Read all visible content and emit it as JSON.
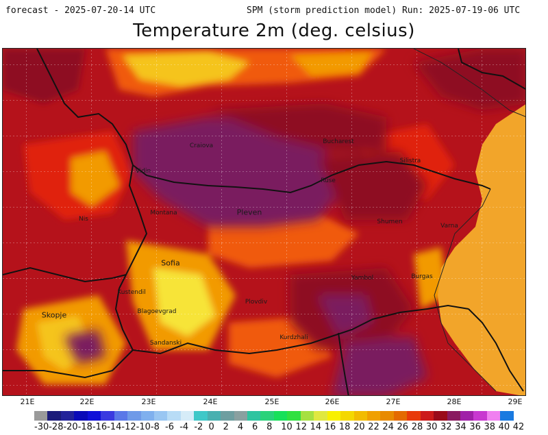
{
  "header": {
    "forecast": "forecast - 2025-07-20-14 UTC",
    "run": "SPM (storm prediction model) Run: 2025-07-19-06 UTC"
  },
  "title": "Temperature 2m (deg. celsius)",
  "longitudes": [
    "21E",
    "22E",
    "23E",
    "24E",
    "25E",
    "26E",
    "27E",
    "28E",
    "29E"
  ],
  "cities": [
    {
      "name": "Craiova"
    },
    {
      "name": "Bucharest"
    },
    {
      "name": "Vidin"
    },
    {
      "name": "Silistra"
    },
    {
      "name": "Ruse"
    },
    {
      "name": "Montana"
    },
    {
      "name": "Pleven"
    },
    {
      "name": "Nis"
    },
    {
      "name": "Shumen"
    },
    {
      "name": "Varna"
    },
    {
      "name": "Sofia"
    },
    {
      "name": "Yambol"
    },
    {
      "name": "Burgas"
    },
    {
      "name": "Kustendil"
    },
    {
      "name": "Plovdiv"
    },
    {
      "name": "Skopje"
    },
    {
      "name": "Blagoevgrad"
    },
    {
      "name": "Kurdzhali"
    },
    {
      "name": "Sandanski"
    }
  ],
  "legend": {
    "labels": [
      "-30",
      "-28",
      "-20",
      "-18",
      "-16",
      "-14",
      "-12",
      "-10",
      "-8",
      "-6",
      "-4",
      "-2",
      "0",
      "2",
      "4",
      "6",
      "8",
      "10",
      "12",
      "14",
      "16",
      "18",
      "20",
      "22",
      "24",
      "26",
      "28",
      "30",
      "32",
      "34",
      "36",
      "38",
      "40",
      "42"
    ],
    "colors": [
      "#9a9a9a",
      "#1b1b7a",
      "#22229a",
      "#0a0ab8",
      "#1010d8",
      "#3a3ae0",
      "#5a78e8",
      "#6f9ae8",
      "#7fb0ee",
      "#99c6f2",
      "#b8dcf6",
      "#d6ecf8",
      "#3fc8c8",
      "#49b0b0",
      "#6e9ea0",
      "#8aa0a0",
      "#2ec4a0",
      "#2ad27a",
      "#18e05a",
      "#30e040",
      "#a6e040",
      "#e0e840",
      "#f8f000",
      "#f4d800",
      "#f2bc00",
      "#f0a000",
      "#e88a00",
      "#e46a00",
      "#e83a0a",
      "#cc1a1a",
      "#9a0a1a",
      "#8a1a60",
      "#a020a8",
      "#c838d0",
      "#f080f0",
      "#1a7ae0"
    ]
  },
  "colors": {
    "deep_purple": "#7a1a5e",
    "maroon": "#8e0f20",
    "dark_red": "#b5121b",
    "red": "#e02010",
    "orange_red": "#f05a0a",
    "orange": "#f29a06",
    "yellow_orange": "#f5c41a",
    "yellow": "#f7e437",
    "sea_orange": "#f2a52a"
  }
}
